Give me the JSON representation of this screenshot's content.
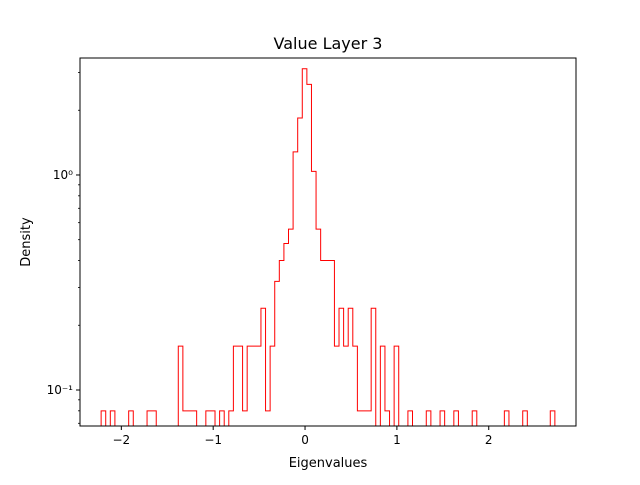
{
  "chart_data": {
    "type": "histogram",
    "title": "Value Layer 3",
    "xlabel": "Eigenvalues",
    "ylabel": "Density",
    "y_scale": "log",
    "xlim": [
      -2.45,
      2.95
    ],
    "ylim": [
      0.068,
      3.5
    ],
    "x_ticks": [
      -2,
      -1,
      0,
      1,
      2
    ],
    "x_tick_labels": [
      "−2",
      "−1",
      "0",
      "1",
      "2"
    ],
    "y_ticks": [
      0.1,
      1
    ],
    "y_tick_labels": [
      "10⁻¹",
      "10⁰"
    ],
    "grid": false,
    "histtype": "step",
    "line_color": "#ff0000",
    "bins": [
      {
        "x0": -2.22,
        "x1": -2.17,
        "density": 0.08
      },
      {
        "x0": -2.17,
        "x1": -2.12,
        "density": 0
      },
      {
        "x0": -2.12,
        "x1": -2.07,
        "density": 0.08
      },
      {
        "x0": -2.07,
        "x1": -1.92,
        "density": 0
      },
      {
        "x0": -1.92,
        "x1": -1.87,
        "density": 0.08
      },
      {
        "x0": -1.87,
        "x1": -1.72,
        "density": 0
      },
      {
        "x0": -1.72,
        "x1": -1.62,
        "density": 0.08
      },
      {
        "x0": -1.62,
        "x1": -1.38,
        "density": 0
      },
      {
        "x0": -1.38,
        "x1": -1.33,
        "density": 0.16
      },
      {
        "x0": -1.33,
        "x1": -1.18,
        "density": 0.08
      },
      {
        "x0": -1.18,
        "x1": -1.08,
        "density": 0
      },
      {
        "x0": -1.08,
        "x1": -0.98,
        "density": 0.08
      },
      {
        "x0": -0.98,
        "x1": -0.93,
        "density": 0
      },
      {
        "x0": -0.93,
        "x1": -0.88,
        "density": 0.08
      },
      {
        "x0": -0.88,
        "x1": -0.83,
        "density": 0
      },
      {
        "x0": -0.83,
        "x1": -0.78,
        "density": 0.08
      },
      {
        "x0": -0.78,
        "x1": -0.68,
        "density": 0.16
      },
      {
        "x0": -0.68,
        "x1": -0.63,
        "density": 0.08
      },
      {
        "x0": -0.63,
        "x1": -0.48,
        "density": 0.16
      },
      {
        "x0": -0.48,
        "x1": -0.43,
        "density": 0.24
      },
      {
        "x0": -0.43,
        "x1": -0.38,
        "density": 0.08
      },
      {
        "x0": -0.38,
        "x1": -0.33,
        "density": 0.16
      },
      {
        "x0": -0.33,
        "x1": -0.28,
        "density": 0.32
      },
      {
        "x0": -0.28,
        "x1": -0.23,
        "density": 0.4
      },
      {
        "x0": -0.23,
        "x1": -0.18,
        "density": 0.48
      },
      {
        "x0": -0.18,
        "x1": -0.13,
        "density": 0.56
      },
      {
        "x0": -0.13,
        "x1": -0.08,
        "density": 1.28
      },
      {
        "x0": -0.08,
        "x1": -0.03,
        "density": 1.84
      },
      {
        "x0": -0.03,
        "x1": 0.02,
        "density": 3.12
      },
      {
        "x0": 0.02,
        "x1": 0.07,
        "density": 2.64
      },
      {
        "x0": 0.07,
        "x1": 0.12,
        "density": 1.04
      },
      {
        "x0": 0.12,
        "x1": 0.17,
        "density": 0.56
      },
      {
        "x0": 0.17,
        "x1": 0.32,
        "density": 0.4
      },
      {
        "x0": 0.32,
        "x1": 0.37,
        "density": 0.16
      },
      {
        "x0": 0.37,
        "x1": 0.42,
        "density": 0.24
      },
      {
        "x0": 0.42,
        "x1": 0.47,
        "density": 0.16
      },
      {
        "x0": 0.47,
        "x1": 0.52,
        "density": 0.24
      },
      {
        "x0": 0.52,
        "x1": 0.57,
        "density": 0.16
      },
      {
        "x0": 0.57,
        "x1": 0.72,
        "density": 0.08
      },
      {
        "x0": 0.72,
        "x1": 0.77,
        "density": 0.24
      },
      {
        "x0": 0.77,
        "x1": 0.82,
        "density": 0
      },
      {
        "x0": 0.82,
        "x1": 0.87,
        "density": 0.16
      },
      {
        "x0": 0.87,
        "x1": 0.92,
        "density": 0.08
      },
      {
        "x0": 0.92,
        "x1": 0.97,
        "density": 0
      },
      {
        "x0": 0.97,
        "x1": 1.02,
        "density": 0.16
      },
      {
        "x0": 1.02,
        "x1": 1.12,
        "density": 0
      },
      {
        "x0": 1.12,
        "x1": 1.17,
        "density": 0.08
      },
      {
        "x0": 1.17,
        "x1": 1.32,
        "density": 0
      },
      {
        "x0": 1.32,
        "x1": 1.37,
        "density": 0.08
      },
      {
        "x0": 1.37,
        "x1": 1.47,
        "density": 0
      },
      {
        "x0": 1.47,
        "x1": 1.52,
        "density": 0.08
      },
      {
        "x0": 1.52,
        "x1": 1.62,
        "density": 0
      },
      {
        "x0": 1.62,
        "x1": 1.67,
        "density": 0.08
      },
      {
        "x0": 1.67,
        "x1": 1.82,
        "density": 0
      },
      {
        "x0": 1.82,
        "x1": 1.87,
        "density": 0.08
      },
      {
        "x0": 1.87,
        "x1": 2.17,
        "density": 0
      },
      {
        "x0": 2.17,
        "x1": 2.22,
        "density": 0.08
      },
      {
        "x0": 2.22,
        "x1": 2.37,
        "density": 0
      },
      {
        "x0": 2.37,
        "x1": 2.42,
        "density": 0.08
      },
      {
        "x0": 2.42,
        "x1": 2.67,
        "density": 0
      },
      {
        "x0": 2.67,
        "x1": 2.72,
        "density": 0.08
      }
    ]
  }
}
